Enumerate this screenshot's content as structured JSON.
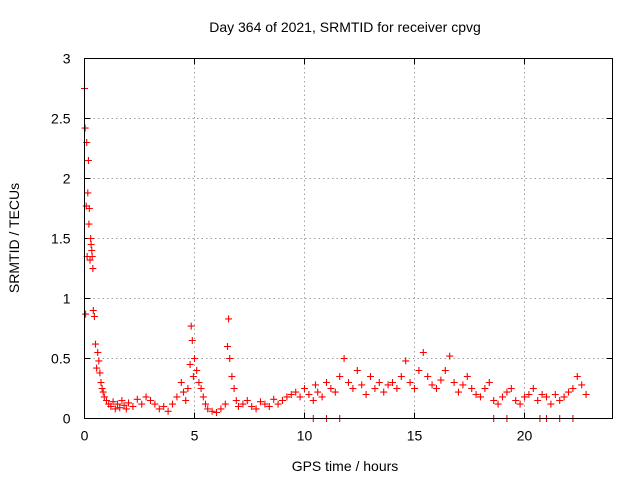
{
  "chart_data": {
    "type": "scatter",
    "title": "Day 364 of 2021, SRMTID for receiver cpvg",
    "xlabel": "GPS time / hours",
    "ylabel": "SRMTID / TECUs",
    "xlim": [
      0,
      24
    ],
    "ylim": [
      0,
      3
    ],
    "xticks": [
      0,
      5,
      10,
      15,
      20
    ],
    "xtick_labels": [
      "0",
      "5",
      "10",
      "15",
      "20"
    ],
    "yticks": [
      0,
      0.5,
      1,
      1.5,
      2,
      2.5,
      3
    ],
    "ytick_labels": [
      "0",
      "0.5",
      "1",
      "1.5",
      "2",
      "2.5",
      "3"
    ],
    "grid": true,
    "marker": "plus",
    "color": "#ff0000",
    "series": [
      {
        "name": "SRMTID",
        "x": [
          0.0,
          0.03,
          0.05,
          0.08,
          0.1,
          0.12,
          0.15,
          0.18,
          0.2,
          0.22,
          0.25,
          0.28,
          0.3,
          0.33,
          0.35,
          0.38,
          0.4,
          0.45,
          0.5,
          0.55,
          0.6,
          0.65,
          0.7,
          0.75,
          0.8,
          0.85,
          0.9,
          1.0,
          1.1,
          1.2,
          1.3,
          1.4,
          1.5,
          1.6,
          1.7,
          1.8,
          1.9,
          2.0,
          2.2,
          2.4,
          2.6,
          2.8,
          3.0,
          3.2,
          3.4,
          3.6,
          3.8,
          4.0,
          4.2,
          4.4,
          4.5,
          4.6,
          4.7,
          4.8,
          4.85,
          4.9,
          4.95,
          5.0,
          5.1,
          5.2,
          5.3,
          5.4,
          5.5,
          5.6,
          5.8,
          6.0,
          6.2,
          6.4,
          6.5,
          6.55,
          6.6,
          6.7,
          6.8,
          6.9,
          7.0,
          7.2,
          7.4,
          7.6,
          7.8,
          8.0,
          8.2,
          8.4,
          8.6,
          8.8,
          9.0,
          9.2,
          9.4,
          9.6,
          9.8,
          10.0,
          10.2,
          10.4,
          10.5,
          10.6,
          10.8,
          11.0,
          11.2,
          11.4,
          11.6,
          11.8,
          12.0,
          12.2,
          12.4,
          12.6,
          12.8,
          13.0,
          13.2,
          13.4,
          13.6,
          13.8,
          14.0,
          14.2,
          14.4,
          14.6,
          14.8,
          15.0,
          15.2,
          15.4,
          15.6,
          15.8,
          16.0,
          16.2,
          16.4,
          16.6,
          16.8,
          17.0,
          17.2,
          17.4,
          17.6,
          17.8,
          18.0,
          18.2,
          18.4,
          18.6,
          18.8,
          19.0,
          19.2,
          19.4,
          19.6,
          19.8,
          20.0,
          20.2,
          20.4,
          20.6,
          20.8,
          21.0,
          21.2,
          21.4,
          21.6,
          21.8,
          22.0,
          22.2,
          22.4,
          22.6,
          22.8,
          10.4,
          11.0,
          11.6,
          18.6,
          19.2,
          20.7,
          21.0,
          21.6,
          22.2
        ],
        "y": [
          2.75,
          2.42,
          0.87,
          1.77,
          2.3,
          1.35,
          1.88,
          2.15,
          1.62,
          1.75,
          1.32,
          1.5,
          1.45,
          1.4,
          1.35,
          1.25,
          0.9,
          0.85,
          0.62,
          0.42,
          0.55,
          0.48,
          0.38,
          0.3,
          0.25,
          0.22,
          0.18,
          0.15,
          0.12,
          0.1,
          0.14,
          0.08,
          0.12,
          0.09,
          0.15,
          0.11,
          0.08,
          0.13,
          0.1,
          0.16,
          0.12,
          0.18,
          0.15,
          0.12,
          0.08,
          0.1,
          0.06,
          0.12,
          0.18,
          0.3,
          0.22,
          0.15,
          0.25,
          0.45,
          0.77,
          0.65,
          0.35,
          0.5,
          0.4,
          0.3,
          0.25,
          0.18,
          0.12,
          0.08,
          0.06,
          0.05,
          0.08,
          0.12,
          0.6,
          0.83,
          0.5,
          0.35,
          0.25,
          0.15,
          0.1,
          0.12,
          0.15,
          0.1,
          0.08,
          0.14,
          0.12,
          0.1,
          0.16,
          0.12,
          0.15,
          0.18,
          0.2,
          0.22,
          0.18,
          0.25,
          0.2,
          0.15,
          0.28,
          0.22,
          0.18,
          0.3,
          0.25,
          0.22,
          0.35,
          0.5,
          0.3,
          0.25,
          0.4,
          0.28,
          0.2,
          0.35,
          0.25,
          0.3,
          0.22,
          0.28,
          0.3,
          0.25,
          0.35,
          0.48,
          0.3,
          0.25,
          0.4,
          0.55,
          0.35,
          0.28,
          0.25,
          0.32,
          0.4,
          0.52,
          0.3,
          0.22,
          0.28,
          0.35,
          0.25,
          0.2,
          0.18,
          0.25,
          0.3,
          0.15,
          0.12,
          0.18,
          0.22,
          0.25,
          0.15,
          0.12,
          0.18,
          0.2,
          0.25,
          0.15,
          0.2,
          0.18,
          0.12,
          0.2,
          0.15,
          0.18,
          0.22,
          0.25,
          0.35,
          0.28,
          0.2,
          0.0,
          0.0,
          0.0,
          0.0,
          0.0,
          0.0,
          0.0,
          0.0,
          0.0
        ]
      }
    ]
  }
}
